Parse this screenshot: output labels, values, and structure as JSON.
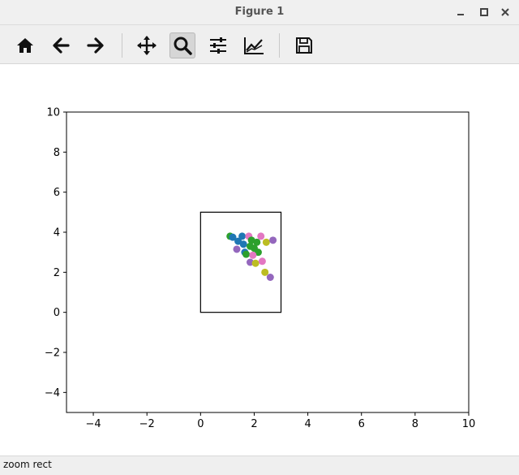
{
  "window": {
    "title": "Figure 1"
  },
  "toolbar": {
    "tools": [
      {
        "name": "home",
        "icon": "home-icon"
      },
      {
        "name": "back",
        "icon": "arrow-left-icon"
      },
      {
        "name": "forward",
        "icon": "arrow-right-icon"
      },
      {
        "name": "pan",
        "icon": "move-icon"
      },
      {
        "name": "zoom",
        "icon": "magnifier-icon",
        "active": true
      },
      {
        "name": "subplots",
        "icon": "sliders-icon"
      },
      {
        "name": "edit-axes",
        "icon": "line-chart-icon"
      },
      {
        "name": "save",
        "icon": "floppy-icon"
      }
    ]
  },
  "status": {
    "text": "zoom rect"
  },
  "chart_data": {
    "type": "scatter",
    "xlim": [
      -5,
      10
    ],
    "ylim": [
      -5,
      10
    ],
    "xticks": [
      "−4",
      "−2",
      "0",
      "2",
      "4",
      "6",
      "8",
      "10"
    ],
    "yticks": [
      "−4",
      "−2",
      "0",
      "2",
      "4",
      "6",
      "8",
      "10"
    ],
    "xtick_values": [
      -4,
      -2,
      0,
      2,
      4,
      6,
      8,
      10
    ],
    "ytick_values": [
      -4,
      -2,
      0,
      2,
      4,
      6,
      8,
      10
    ],
    "rectangle": {
      "x0": 0,
      "y0": 0,
      "x1": 3,
      "y1": 5
    },
    "colors": {
      "blue": "#1f77b4",
      "green": "#2ca02c",
      "pink": "#e377c2",
      "purple": "#9467bd",
      "olive": "#bcbd22"
    },
    "points": [
      {
        "x": 1.1,
        "y": 3.8,
        "c": "green"
      },
      {
        "x": 1.2,
        "y": 3.75,
        "c": "blue"
      },
      {
        "x": 1.4,
        "y": 3.55,
        "c": "blue"
      },
      {
        "x": 1.55,
        "y": 3.8,
        "c": "blue"
      },
      {
        "x": 1.6,
        "y": 3.4,
        "c": "blue"
      },
      {
        "x": 1.8,
        "y": 3.8,
        "c": "pink"
      },
      {
        "x": 1.9,
        "y": 3.6,
        "c": "green"
      },
      {
        "x": 2.1,
        "y": 3.5,
        "c": "green"
      },
      {
        "x": 2.25,
        "y": 3.8,
        "c": "pink"
      },
      {
        "x": 1.35,
        "y": 3.15,
        "c": "purple"
      },
      {
        "x": 1.65,
        "y": 3.0,
        "c": "blue"
      },
      {
        "x": 1.7,
        "y": 2.9,
        "c": "green"
      },
      {
        "x": 1.85,
        "y": 3.3,
        "c": "green"
      },
      {
        "x": 2.0,
        "y": 3.2,
        "c": "green"
      },
      {
        "x": 2.15,
        "y": 3.0,
        "c": "green"
      },
      {
        "x": 1.95,
        "y": 2.85,
        "c": "pink"
      },
      {
        "x": 1.85,
        "y": 2.5,
        "c": "purple"
      },
      {
        "x": 2.05,
        "y": 2.45,
        "c": "olive"
      },
      {
        "x": 2.3,
        "y": 2.55,
        "c": "pink"
      },
      {
        "x": 2.45,
        "y": 3.5,
        "c": "olive"
      },
      {
        "x": 2.7,
        "y": 3.6,
        "c": "purple"
      },
      {
        "x": 2.4,
        "y": 2.0,
        "c": "olive"
      },
      {
        "x": 2.6,
        "y": 1.75,
        "c": "purple"
      }
    ]
  }
}
